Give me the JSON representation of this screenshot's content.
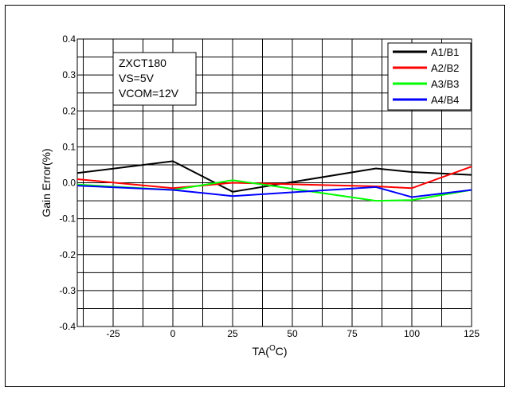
{
  "chart_data": {
    "type": "line",
    "xlabel": "TA(",
    "xlabel_sup": "O",
    "xlabel_suffix": "C)",
    "ylabel": "Gain Error(%)",
    "xlim": [
      -40,
      125
    ],
    "ylim": [
      -0.4,
      0.4
    ],
    "x_ticks": [
      -25,
      0,
      25,
      50,
      75,
      100,
      125
    ],
    "x_tick_labels": [
      "-25",
      "0",
      "25",
      "50",
      "75",
      "100",
      "125"
    ],
    "y_ticks": [
      0.4,
      0.3,
      0.2,
      0.1,
      0.0,
      -0.1,
      -0.2,
      -0.3,
      -0.4
    ],
    "y_tick_labels": [
      "0.4",
      "0.3",
      "0.2",
      "0.1",
      "0.0",
      "-0.1",
      "-0.2",
      "-0.3",
      "-0.4"
    ],
    "grid": true,
    "legend_position": "top-right",
    "annotation_lines": [
      "ZXCT180",
      "VS=5V",
      "VCOM=12V"
    ],
    "series": [
      {
        "name": "A1/B1",
        "color": "#000000",
        "x": [
          -40,
          0,
          25,
          85,
          100,
          125
        ],
        "y": [
          0.027,
          0.06,
          -0.025,
          0.04,
          0.03,
          0.022
        ]
      },
      {
        "name": "A2/B2",
        "color": "#ff0000",
        "x": [
          -40,
          0,
          25,
          85,
          100,
          125
        ],
        "y": [
          0.01,
          -0.015,
          0.0,
          -0.01,
          -0.015,
          0.045
        ]
      },
      {
        "name": "A3/B3",
        "color": "#00ff00",
        "x": [
          -40,
          0,
          25,
          85,
          100,
          125
        ],
        "y": [
          -0.005,
          -0.02,
          0.007,
          -0.05,
          -0.048,
          -0.02
        ]
      },
      {
        "name": "A4/B4",
        "color": "#0000ff",
        "x": [
          -40,
          0,
          25,
          85,
          100,
          125
        ],
        "y": [
          -0.008,
          -0.02,
          -0.037,
          -0.012,
          -0.04,
          -0.02
        ]
      }
    ]
  }
}
